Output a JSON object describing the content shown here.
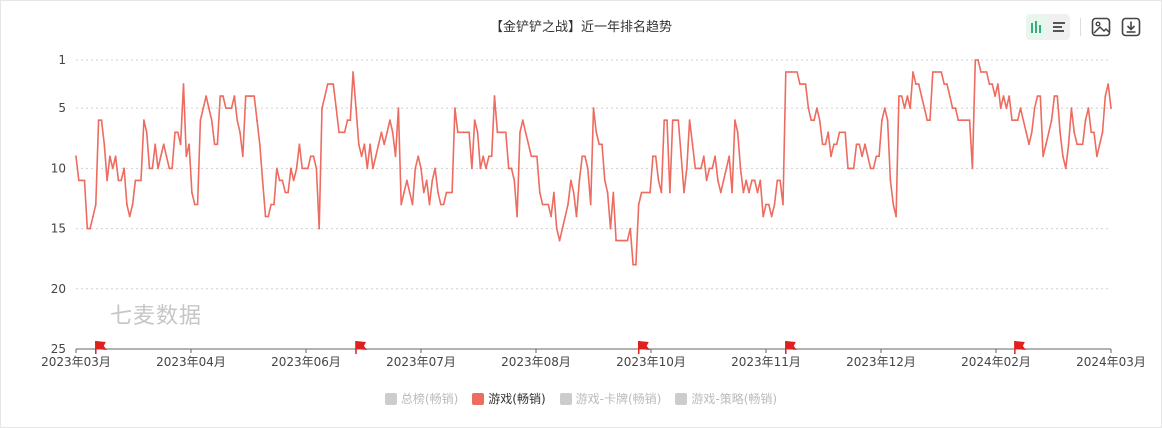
{
  "title": "【金铲铲之战】近一年排名趋势",
  "watermark": "七麦数据",
  "toolbar": {
    "chart_toggle_icon": "bar-chart-icon",
    "list_toggle_icon": "list-icon",
    "image_icon": "image-icon",
    "download_icon": "download-icon"
  },
  "colors": {
    "series": "#ee6b60",
    "flag": "#e01f1f",
    "active_icon": "#2fb37a"
  },
  "legend": [
    {
      "label": "总榜(畅销)",
      "active": false
    },
    {
      "label": "游戏(畅销)",
      "active": true
    },
    {
      "label": "游戏-卡牌(畅销)",
      "active": false
    },
    {
      "label": "游戏-策略(畅销)",
      "active": false
    }
  ],
  "chart_data": {
    "type": "line",
    "x_range": [
      "2023-03-01",
      "2024-03-01"
    ],
    "x_ticks": [
      "2023年03月",
      "2023年04月",
      "2023年06月",
      "2023年07月",
      "2023年08月",
      "2023年10月",
      "2023年11月",
      "2023年12月",
      "2024年02月",
      "2024年03月"
    ],
    "y_ticks": [
      "1",
      "5",
      "10",
      "15",
      "20",
      "25"
    ],
    "ylim": [
      1,
      25
    ],
    "y_inverted": true,
    "grid": true,
    "flags": [
      "2023-03-08",
      "2023-06-08",
      "2023-09-16",
      "2023-11-07",
      "2024-01-27"
    ],
    "series": [
      {
        "name": "游戏(畅销)",
        "x": [
          "2023-03-01",
          "2023-03-02",
          "2023-03-03",
          "2023-03-04",
          "2023-03-05",
          "2023-03-06",
          "2023-03-07",
          "2023-03-08",
          "2023-03-09",
          "2023-03-10",
          "2023-03-11",
          "2023-03-12",
          "2023-03-13",
          "2023-03-14",
          "2023-03-15",
          "2023-03-16",
          "2023-03-17",
          "2023-03-18",
          "2023-03-19",
          "2023-03-20",
          "2023-03-21",
          "2023-03-22",
          "2023-03-23",
          "2023-03-24",
          "2023-03-25",
          "2023-03-26",
          "2023-03-27",
          "2023-03-28",
          "2023-03-29",
          "2023-03-30",
          "2023-03-31",
          "2023-04-01",
          "2023-04-02",
          "2023-04-03",
          "2023-04-04",
          "2023-04-05",
          "2023-04-06",
          "2023-04-07",
          "2023-04-08",
          "2023-04-09",
          "2023-04-10",
          "2023-04-11",
          "2023-04-12",
          "2023-04-13",
          "2023-04-14",
          "2023-04-15",
          "2023-04-16",
          "2023-04-17",
          "2023-04-18",
          "2023-04-19",
          "2023-04-20",
          "2023-04-21",
          "2023-04-22",
          "2023-04-23",
          "2023-04-24",
          "2023-04-25",
          "2023-04-26",
          "2023-04-27",
          "2023-04-28",
          "2023-04-29",
          "2023-04-30",
          "2023-05-01",
          "2023-05-02",
          "2023-05-03",
          "2023-05-04",
          "2023-05-05",
          "2023-05-06",
          "2023-05-07",
          "2023-05-08",
          "2023-05-09",
          "2023-05-10",
          "2023-05-11",
          "2023-05-12",
          "2023-05-13",
          "2023-05-14",
          "2023-05-15",
          "2023-05-16",
          "2023-05-17",
          "2023-05-18",
          "2023-05-19",
          "2023-05-20",
          "2023-05-21",
          "2023-05-22",
          "2023-05-23",
          "2023-05-24",
          "2023-05-25",
          "2023-05-26",
          "2023-05-27",
          "2023-05-28",
          "2023-05-29",
          "2023-05-30",
          "2023-05-31",
          "2023-06-01",
          "2023-06-02",
          "2023-06-03",
          "2023-06-04",
          "2023-06-05",
          "2023-06-06",
          "2023-06-07",
          "2023-06-08",
          "2023-06-09",
          "2023-06-10",
          "2023-06-11",
          "2023-06-12",
          "2023-06-13",
          "2023-06-14",
          "2023-06-15",
          "2023-06-16",
          "2023-06-17",
          "2023-06-18",
          "2023-06-19",
          "2023-06-20",
          "2023-06-21",
          "2023-06-22",
          "2023-06-23",
          "2023-06-24",
          "2023-06-25",
          "2023-06-26",
          "2023-06-27",
          "2023-06-28",
          "2023-06-29",
          "2023-06-30",
          "2023-07-01",
          "2023-07-02",
          "2023-07-03",
          "2023-07-04",
          "2023-07-05",
          "2023-07-06",
          "2023-07-07",
          "2023-07-08",
          "2023-07-09",
          "2023-07-10",
          "2023-07-11",
          "2023-07-12",
          "2023-07-13",
          "2023-07-14",
          "2023-07-15",
          "2023-07-16",
          "2023-07-17",
          "2023-07-18",
          "2023-07-19",
          "2023-07-20",
          "2023-07-21",
          "2023-07-22",
          "2023-07-23",
          "2023-07-24",
          "2023-07-25",
          "2023-07-26",
          "2023-07-27",
          "2023-07-28",
          "2023-07-29",
          "2023-07-30",
          "2023-07-31",
          "2023-08-01",
          "2023-08-02",
          "2023-08-03",
          "2023-08-04",
          "2023-08-05",
          "2023-08-06",
          "2023-08-07",
          "2023-08-08",
          "2023-08-09",
          "2023-08-10",
          "2023-08-11",
          "2023-08-12",
          "2023-08-13",
          "2023-08-14",
          "2023-08-15",
          "2023-08-16",
          "2023-08-17",
          "2023-08-18",
          "2023-08-19",
          "2023-08-20",
          "2023-08-21",
          "2023-08-22",
          "2023-08-23",
          "2023-08-24",
          "2023-08-25",
          "2023-08-26",
          "2023-08-27",
          "2023-08-28",
          "2023-08-29",
          "2023-08-30",
          "2023-08-31",
          "2023-09-01",
          "2023-09-02",
          "2023-09-03",
          "2023-09-04",
          "2023-09-05",
          "2023-09-06",
          "2023-09-07",
          "2023-09-08",
          "2023-09-09",
          "2023-09-10",
          "2023-09-11",
          "2023-09-12",
          "2023-09-13",
          "2023-09-14",
          "2023-09-15",
          "2023-09-16",
          "2023-09-17",
          "2023-09-18",
          "2023-09-19",
          "2023-09-20",
          "2023-09-21",
          "2023-09-22",
          "2023-09-23",
          "2023-09-24",
          "2023-09-25",
          "2023-09-26",
          "2023-09-27",
          "2023-09-28",
          "2023-09-29",
          "2023-09-30",
          "2023-10-01",
          "2023-10-02",
          "2023-10-03",
          "2023-10-04",
          "2023-10-05",
          "2023-10-06",
          "2023-10-07",
          "2023-10-08",
          "2023-10-09",
          "2023-10-10",
          "2023-10-11",
          "2023-10-12",
          "2023-10-13",
          "2023-10-14",
          "2023-10-15",
          "2023-10-16",
          "2023-10-17",
          "2023-10-18",
          "2023-10-19",
          "2023-10-20",
          "2023-10-21",
          "2023-10-22",
          "2023-10-23",
          "2023-10-24",
          "2023-10-25",
          "2023-10-26",
          "2023-10-27",
          "2023-10-28",
          "2023-10-29",
          "2023-10-30",
          "2023-10-31",
          "2023-11-01",
          "2023-11-02",
          "2023-11-03",
          "2023-11-04",
          "2023-11-05",
          "2023-11-06",
          "2023-11-07",
          "2023-11-08",
          "2023-11-09",
          "2023-11-10",
          "2023-11-11",
          "2023-11-12",
          "2023-11-13",
          "2023-11-14",
          "2023-11-15",
          "2023-11-16",
          "2023-11-17",
          "2023-11-18",
          "2023-11-19",
          "2023-11-20",
          "2023-11-21",
          "2023-11-22",
          "2023-11-23",
          "2023-11-24",
          "2023-11-25",
          "2023-11-26",
          "2023-11-27",
          "2023-11-28",
          "2023-11-29",
          "2023-11-30",
          "2023-12-01",
          "2023-12-02",
          "2023-12-03",
          "2023-12-04",
          "2023-12-05",
          "2023-12-06",
          "2023-12-07",
          "2023-12-08",
          "2023-12-09",
          "2023-12-10",
          "2023-12-11",
          "2023-12-12",
          "2023-12-13",
          "2023-12-14",
          "2023-12-15",
          "2023-12-16",
          "2023-12-17",
          "2023-12-18",
          "2023-12-19",
          "2023-12-20",
          "2023-12-21",
          "2023-12-22",
          "2023-12-23",
          "2023-12-24",
          "2023-12-25",
          "2023-12-26",
          "2023-12-27",
          "2023-12-28",
          "2023-12-29",
          "2023-12-30",
          "2023-12-31",
          "2024-01-01",
          "2024-01-02",
          "2024-01-03",
          "2024-01-04",
          "2024-01-05",
          "2024-01-06",
          "2024-01-07",
          "2024-01-08",
          "2024-01-09",
          "2024-01-10",
          "2024-01-11",
          "2024-01-12",
          "2024-01-13",
          "2024-01-14",
          "2024-01-15",
          "2024-01-16",
          "2024-01-17",
          "2024-01-18",
          "2024-01-19",
          "2024-01-20",
          "2024-01-21",
          "2024-01-22",
          "2024-01-23",
          "2024-01-24",
          "2024-01-25",
          "2024-01-26",
          "2024-01-27",
          "2024-01-28",
          "2024-01-29",
          "2024-01-30",
          "2024-01-31",
          "2024-02-01",
          "2024-02-02",
          "2024-02-03",
          "2024-02-04",
          "2024-02-05",
          "2024-02-06",
          "2024-02-07",
          "2024-02-08",
          "2024-02-09",
          "2024-02-10",
          "2024-02-11",
          "2024-02-12",
          "2024-02-13",
          "2024-02-14",
          "2024-02-15",
          "2024-02-16",
          "2024-02-17",
          "2024-02-18",
          "2024-02-19",
          "2024-02-20",
          "2024-02-21",
          "2024-02-22",
          "2024-02-23",
          "2024-02-24",
          "2024-02-25",
          "2024-02-26",
          "2024-02-27",
          "2024-02-28",
          "2024-02-29",
          "2024-03-01"
        ],
        "values": [
          9,
          11,
          11,
          11,
          15,
          15,
          14,
          13,
          6,
          6,
          8,
          11,
          9,
          10,
          9,
          11,
          11,
          10,
          13,
          14,
          13,
          11,
          11,
          11,
          6,
          7,
          10,
          10,
          8,
          10,
          9,
          8,
          9,
          10,
          10,
          7,
          7,
          8,
          3,
          9,
          8,
          12,
          13,
          13,
          6,
          5,
          4,
          5,
          6,
          8,
          8,
          4,
          4,
          5,
          5,
          5,
          4,
          6,
          7,
          9,
          4,
          4,
          4,
          4,
          6,
          8,
          11,
          14,
          14,
          13,
          13,
          10,
          11,
          11,
          12,
          12,
          10,
          11,
          10,
          8,
          10,
          10,
          10,
          9,
          9,
          10,
          15,
          5,
          4,
          3,
          3,
          3,
          5,
          7,
          7,
          7,
          6,
          6,
          2,
          5,
          8,
          9,
          8,
          10,
          8,
          10,
          9,
          8,
          7,
          8,
          7,
          6,
          7,
          9,
          5,
          13,
          12,
          11,
          12,
          13,
          10,
          9,
          10,
          12,
          11,
          13,
          11,
          10,
          12,
          13,
          13,
          12,
          12,
          12,
          5,
          7,
          7,
          7,
          7,
          7,
          10,
          6,
          7,
          10,
          9,
          10,
          9,
          9,
          4,
          7,
          7,
          7,
          7,
          10,
          10,
          11,
          14,
          7,
          6,
          7,
          8,
          9,
          9,
          9,
          12,
          13,
          13,
          13,
          14,
          12,
          15,
          16,
          15,
          14,
          13,
          11,
          12,
          14,
          11,
          9,
          9,
          10,
          13,
          5,
          7,
          8,
          8,
          11,
          12,
          15,
          12,
          16,
          16,
          16,
          16,
          16,
          15,
          18,
          18,
          13,
          12,
          12,
          12,
          12,
          9,
          9,
          11,
          12,
          6,
          6,
          12,
          6,
          6,
          6,
          9,
          12,
          10,
          6,
          8,
          10,
          10,
          10,
          9,
          11,
          10,
          10,
          9,
          11,
          12,
          11,
          10,
          9,
          12,
          6,
          7,
          10,
          12,
          11,
          12,
          11,
          11,
          12,
          11,
          14,
          13,
          13,
          14,
          13,
          11,
          11,
          13,
          2,
          2,
          2,
          2,
          2,
          3,
          3,
          3,
          5,
          6,
          6,
          5,
          6,
          8,
          8,
          7,
          9,
          8,
          8,
          7,
          7,
          7,
          10,
          10,
          10,
          8,
          8,
          9,
          8,
          9,
          10,
          10,
          9,
          9,
          6,
          5,
          6,
          11,
          13,
          14,
          4,
          4,
          5,
          4,
          5,
          2,
          3,
          3,
          4,
          5,
          6,
          6,
          2,
          2,
          2,
          2,
          3,
          3,
          4,
          5,
          5,
          6,
          6,
          6,
          6,
          6,
          10,
          1,
          1,
          2,
          2,
          2,
          3,
          3,
          4,
          3,
          5,
          4,
          5,
          4,
          6,
          6,
          6,
          5,
          6,
          7,
          8,
          7,
          5,
          4,
          4,
          9,
          8,
          7,
          6,
          4,
          4,
          7,
          9,
          10,
          8,
          5,
          7,
          8,
          8,
          8,
          6,
          5,
          7,
          7,
          9,
          8,
          7,
          4,
          3,
          5
        ]
      }
    ]
  }
}
